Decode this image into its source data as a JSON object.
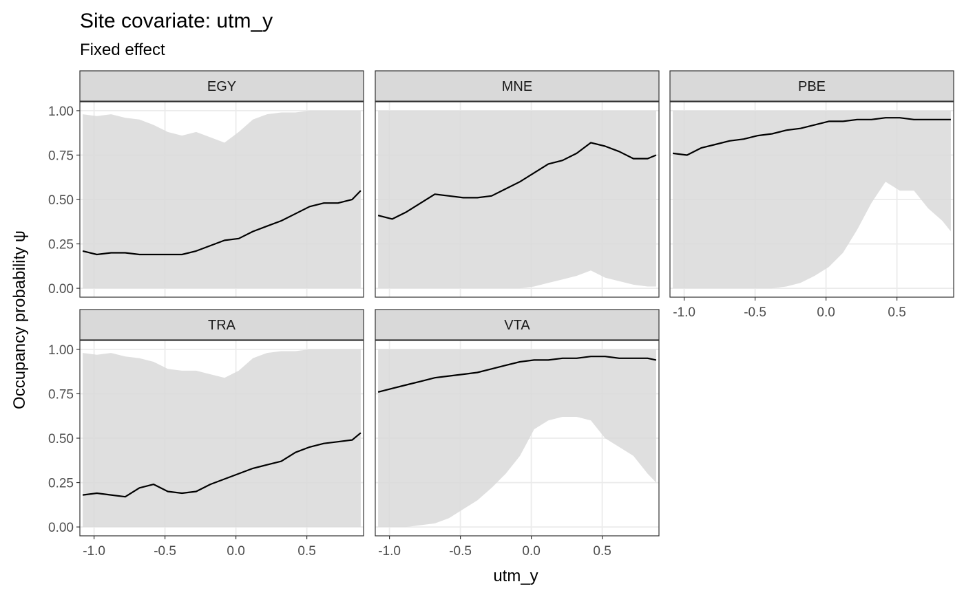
{
  "chart_data": {
    "type": "line",
    "title": "Site covariate: utm_y",
    "subtitle": "Fixed effect",
    "xlabel": "utm_y",
    "ylabel": "Occupancy probability  ψ",
    "xlim": [
      -1.1,
      0.9
    ],
    "ylim": [
      -0.05,
      1.05
    ],
    "x_ticks": [
      -1.0,
      -0.5,
      0.0,
      0.5
    ],
    "x_tick_labels": [
      "-1.0",
      "-0.5",
      "0.0",
      "0.5"
    ],
    "y_ticks": [
      0.0,
      0.25,
      0.5,
      0.75,
      1.0
    ],
    "y_tick_labels": [
      "0.00",
      "0.25",
      "0.50",
      "0.75",
      "1.00"
    ],
    "grid": true,
    "colors": {
      "ribbon": "#d9d9d9",
      "line": "#000000",
      "strip": "#d9d9d9",
      "grid_major": "#ebebeb",
      "panel_border": "#333333"
    },
    "x": [
      -1.08,
      -0.98,
      -0.88,
      -0.78,
      -0.68,
      -0.58,
      -0.48,
      -0.38,
      -0.28,
      -0.18,
      -0.08,
      0.02,
      0.12,
      0.22,
      0.32,
      0.42,
      0.52,
      0.62,
      0.72,
      0.82,
      0.88
    ],
    "facets": [
      {
        "name": "EGY",
        "mean": [
          0.21,
          0.19,
          0.2,
          0.2,
          0.19,
          0.19,
          0.19,
          0.19,
          0.21,
          0.24,
          0.27,
          0.28,
          0.32,
          0.35,
          0.38,
          0.42,
          0.46,
          0.48,
          0.48,
          0.5,
          0.55
        ],
        "lower": [
          0,
          0,
          0,
          0,
          0,
          0,
          0,
          0,
          0,
          0,
          0,
          0,
          0,
          0,
          0,
          0,
          0,
          0,
          0,
          0,
          0
        ],
        "upper": [
          0.98,
          0.97,
          0.98,
          0.96,
          0.95,
          0.92,
          0.88,
          0.86,
          0.88,
          0.85,
          0.82,
          0.88,
          0.95,
          0.98,
          0.99,
          0.99,
          1.0,
          1.0,
          1.0,
          1.0,
          1.0
        ]
      },
      {
        "name": "MNE",
        "mean": [
          0.41,
          0.39,
          0.43,
          0.48,
          0.53,
          0.52,
          0.51,
          0.51,
          0.52,
          0.56,
          0.6,
          0.65,
          0.7,
          0.72,
          0.76,
          0.82,
          0.8,
          0.77,
          0.73,
          0.73,
          0.75
        ],
        "lower": [
          0,
          0,
          0,
          0,
          0,
          0,
          0,
          0,
          0,
          0,
          0,
          0.01,
          0.03,
          0.05,
          0.07,
          0.1,
          0.06,
          0.04,
          0.02,
          0.01,
          0.01
        ],
        "upper": [
          1,
          1,
          1,
          1,
          1,
          1,
          1,
          1,
          1,
          1,
          1,
          1,
          1,
          1,
          1,
          1,
          1,
          1,
          1,
          1,
          1
        ]
      },
      {
        "name": "PBE",
        "mean": [
          0.76,
          0.75,
          0.79,
          0.81,
          0.83,
          0.84,
          0.86,
          0.87,
          0.89,
          0.9,
          0.92,
          0.94,
          0.94,
          0.95,
          0.95,
          0.96,
          0.96,
          0.95,
          0.95,
          0.95,
          0.95
        ],
        "lower": [
          0,
          0,
          0,
          0,
          0,
          0,
          0,
          0,
          0.01,
          0.03,
          0.07,
          0.12,
          0.2,
          0.33,
          0.48,
          0.6,
          0.55,
          0.55,
          0.45,
          0.38,
          0.32
        ],
        "upper": [
          1,
          1,
          1,
          1,
          1,
          1,
          1,
          1,
          1,
          1,
          1,
          1,
          1,
          1,
          1,
          1,
          1,
          1,
          1,
          1,
          1
        ]
      },
      {
        "name": "TRA",
        "mean": [
          0.18,
          0.19,
          0.18,
          0.17,
          0.22,
          0.24,
          0.2,
          0.19,
          0.2,
          0.24,
          0.27,
          0.3,
          0.33,
          0.35,
          0.37,
          0.42,
          0.45,
          0.47,
          0.48,
          0.49,
          0.53
        ],
        "lower": [
          0,
          0,
          0,
          0,
          0,
          0,
          0,
          0,
          0,
          0,
          0,
          0,
          0,
          0,
          0,
          0,
          0,
          0,
          0,
          0,
          0
        ],
        "upper": [
          0.98,
          0.97,
          0.98,
          0.96,
          0.95,
          0.93,
          0.89,
          0.88,
          0.88,
          0.86,
          0.84,
          0.88,
          0.95,
          0.98,
          0.99,
          0.99,
          1.0,
          1.0,
          1.0,
          1.0,
          1.0
        ]
      },
      {
        "name": "VTA",
        "mean": [
          0.76,
          0.78,
          0.8,
          0.82,
          0.84,
          0.85,
          0.86,
          0.87,
          0.89,
          0.91,
          0.93,
          0.94,
          0.94,
          0.95,
          0.95,
          0.96,
          0.96,
          0.95,
          0.95,
          0.95,
          0.94
        ],
        "lower": [
          0,
          0,
          0,
          0.01,
          0.02,
          0.05,
          0.1,
          0.15,
          0.22,
          0.3,
          0.4,
          0.55,
          0.6,
          0.62,
          0.62,
          0.6,
          0.5,
          0.45,
          0.4,
          0.3,
          0.25
        ],
        "upper": [
          1,
          1,
          1,
          1,
          1,
          1,
          1,
          1,
          1,
          1,
          1,
          1,
          1,
          1,
          1,
          1,
          1,
          1,
          1,
          1,
          1
        ]
      }
    ]
  }
}
